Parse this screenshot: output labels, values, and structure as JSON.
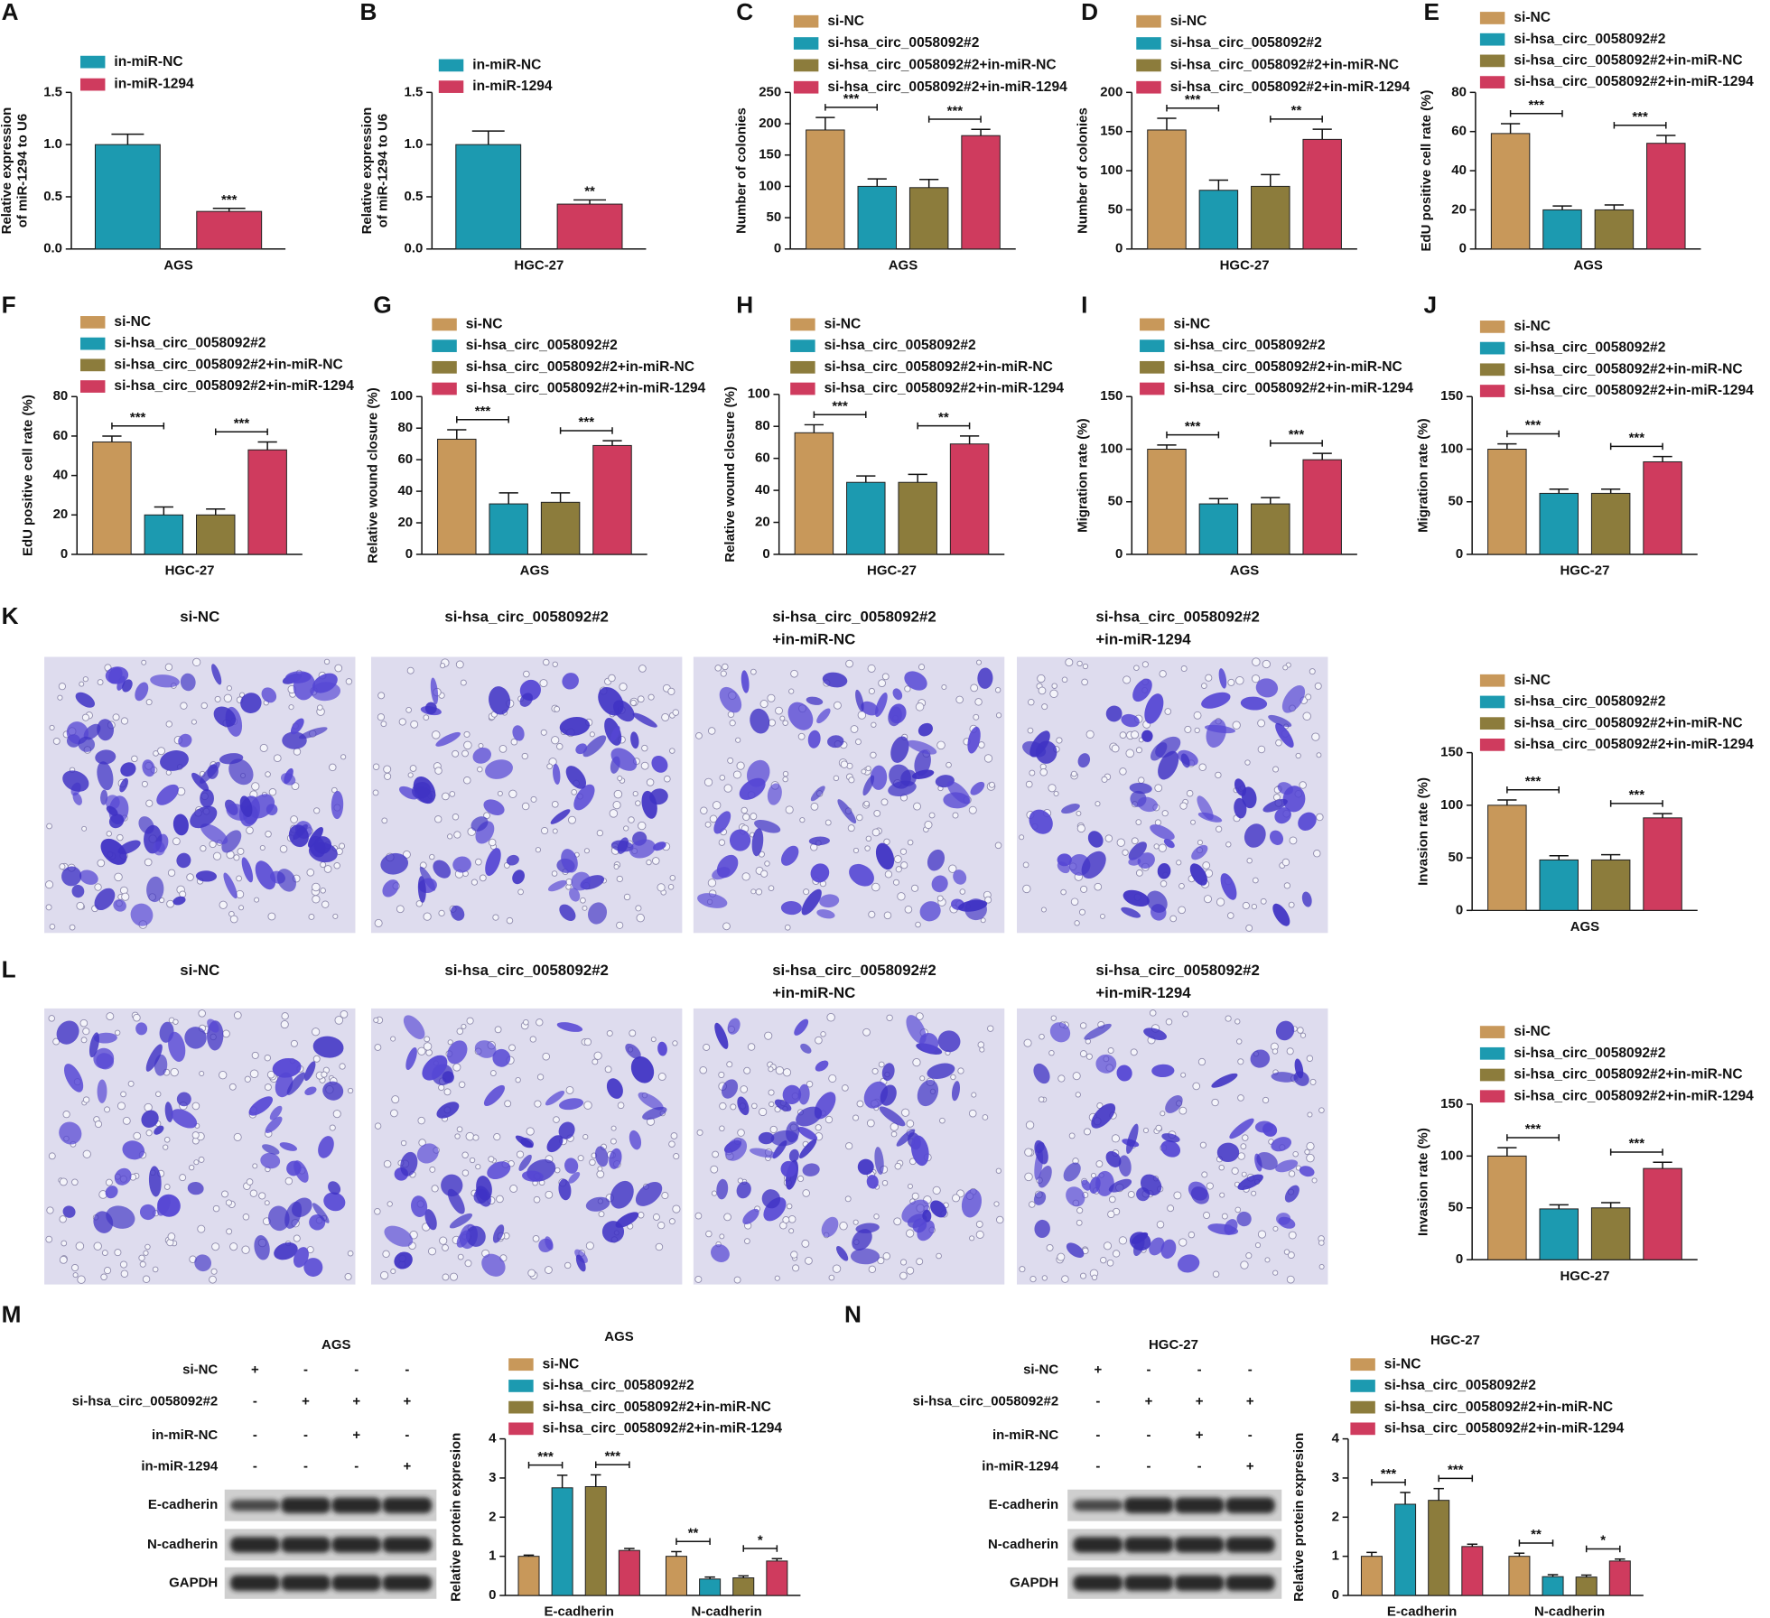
{
  "chart_data": [
    {
      "type": "bar",
      "label": "A",
      "ylabel": [
        "Relative expression",
        "of miR-1294 to U6"
      ],
      "categories": [
        "AGS"
      ],
      "series": [
        {
          "name": "in-miR-NC",
          "color": "#1c9ab0",
          "values": [
            1.0
          ],
          "errors": [
            0.1
          ]
        },
        {
          "name": "in-miR-1294",
          "color": "#cf3b5e",
          "values": [
            0.36
          ],
          "errors": [
            0.03
          ]
        }
      ],
      "significance": [
        [
          "***"
        ]
      ],
      "ylim": [
        0,
        1.5
      ],
      "yticks": [
        {
          "value": 0,
          "label": "0.0"
        },
        {
          "value": 0.5,
          "label": "0.5"
        },
        {
          "value": 1,
          "label": "1.0"
        },
        {
          "value": 1.5,
          "label": "1.5"
        }
      ]
    },
    {
      "type": "bar",
      "label": "B",
      "ylabel": [
        "Relative expression",
        "of miR-1294 to U6"
      ],
      "categories": [
        "HGC-27"
      ],
      "series": [
        {
          "name": "in-miR-NC",
          "color": "#1c9ab0",
          "values": [
            1.0
          ],
          "errors": [
            0.13
          ]
        },
        {
          "name": "in-miR-1294",
          "color": "#cf3b5e",
          "values": [
            0.43
          ],
          "errors": [
            0.04
          ]
        }
      ],
      "significance": [
        [
          "**"
        ]
      ],
      "ylim": [
        0,
        1.5
      ],
      "yticks": [
        {
          "value": 0,
          "label": "0.0"
        },
        {
          "value": 0.5,
          "label": "0.5"
        },
        {
          "value": 1,
          "label": "1.0"
        },
        {
          "value": 1.5,
          "label": "1.5"
        }
      ]
    },
    {
      "type": "bar",
      "label": "C",
      "ylabel": [
        "Number of colonies"
      ],
      "categories": [
        "AGS"
      ],
      "series": [
        {
          "name": "si-NC",
          "color": "#c8985a",
          "values": [
            190
          ],
          "errors": [
            20
          ]
        },
        {
          "name": "si-hsa_circ_0058092#2",
          "color": "#1c9ab0",
          "values": [
            100
          ],
          "errors": [
            12
          ]
        },
        {
          "name": "si-hsa_circ_0058092#2+in-miR-NC",
          "color": "#8c7c3c",
          "values": [
            98
          ],
          "errors": [
            13
          ]
        },
        {
          "name": "si-hsa_circ_0058092#2+in-miR-1294",
          "color": "#cf3b5e",
          "values": [
            181
          ],
          "errors": [
            10
          ]
        }
      ],
      "significance": [
        [
          "***",
          "***"
        ]
      ],
      "ylim": [
        0,
        250
      ],
      "yticks": [
        0,
        50,
        100,
        150,
        200,
        250
      ]
    },
    {
      "type": "bar",
      "label": "D",
      "ylabel": [
        "Number of colonies"
      ],
      "categories": [
        "HGC-27"
      ],
      "series": [
        {
          "name": "si-NC",
          "color": "#c8985a",
          "values": [
            152
          ],
          "errors": [
            15
          ]
        },
        {
          "name": "si-hsa_circ_0058092#2",
          "color": "#1c9ab0",
          "values": [
            75
          ],
          "errors": [
            13
          ]
        },
        {
          "name": "si-hsa_circ_0058092#2+in-miR-NC",
          "color": "#8c7c3c",
          "values": [
            80
          ],
          "errors": [
            15
          ]
        },
        {
          "name": "si-hsa_circ_0058092#2+in-miR-1294",
          "color": "#cf3b5e",
          "values": [
            140
          ],
          "errors": [
            13
          ]
        }
      ],
      "significance": [
        [
          "***",
          "**"
        ]
      ],
      "ylim": [
        0,
        200
      ],
      "yticks": [
        0,
        50,
        100,
        150,
        200
      ]
    },
    {
      "type": "bar",
      "label": "E",
      "ylabel": [
        "EdU positive cell rate (%)"
      ],
      "categories": [
        "AGS"
      ],
      "series": [
        {
          "name": "si-NC",
          "color": "#c8985a",
          "values": [
            59
          ],
          "errors": [
            5
          ]
        },
        {
          "name": "si-hsa_circ_0058092#2",
          "color": "#1c9ab0",
          "values": [
            20
          ],
          "errors": [
            2
          ]
        },
        {
          "name": "si-hsa_circ_0058092#2+in-miR-NC",
          "color": "#8c7c3c",
          "values": [
            20
          ],
          "errors": [
            2.5
          ]
        },
        {
          "name": "si-hsa_circ_0058092#2+in-miR-1294",
          "color": "#cf3b5e",
          "values": [
            54
          ],
          "errors": [
            4
          ]
        }
      ],
      "significance": [
        [
          "***",
          "***"
        ]
      ],
      "ylim": [
        0,
        80
      ],
      "yticks": [
        0,
        20,
        40,
        60,
        80
      ]
    },
    {
      "type": "bar",
      "label": "F",
      "ylabel": [
        "EdU positive cell rate (%)"
      ],
      "categories": [
        "HGC-27"
      ],
      "series": [
        {
          "name": "si-NC",
          "color": "#c8985a",
          "values": [
            57
          ],
          "errors": [
            3
          ]
        },
        {
          "name": "si-hsa_circ_0058092#2",
          "color": "#1c9ab0",
          "values": [
            20
          ],
          "errors": [
            4
          ]
        },
        {
          "name": "si-hsa_circ_0058092#2+in-miR-NC",
          "color": "#8c7c3c",
          "values": [
            20
          ],
          "errors": [
            3
          ]
        },
        {
          "name": "si-hsa_circ_0058092#2+in-miR-1294",
          "color": "#cf3b5e",
          "values": [
            53
          ],
          "errors": [
            4
          ]
        }
      ],
      "significance": [
        [
          "***",
          "***"
        ]
      ],
      "ylim": [
        0,
        80
      ],
      "yticks": [
        0,
        20,
        40,
        60,
        80
      ]
    },
    {
      "type": "bar",
      "label": "G",
      "ylabel": [
        "Relative wound closure (%)"
      ],
      "categories": [
        "AGS"
      ],
      "series": [
        {
          "name": "si-NC",
          "color": "#c8985a",
          "values": [
            73
          ],
          "errors": [
            6
          ]
        },
        {
          "name": "si-hsa_circ_0058092#2",
          "color": "#1c9ab0",
          "values": [
            32
          ],
          "errors": [
            7
          ]
        },
        {
          "name": "si-hsa_circ_0058092#2+in-miR-NC",
          "color": "#8c7c3c",
          "values": [
            33
          ],
          "errors": [
            6
          ]
        },
        {
          "name": "si-hsa_circ_0058092#2+in-miR-1294",
          "color": "#cf3b5e",
          "values": [
            69
          ],
          "errors": [
            3
          ]
        }
      ],
      "significance": [
        [
          "***",
          "***"
        ]
      ],
      "ylim": [
        0,
        100
      ],
      "yticks": [
        0,
        20,
        40,
        60,
        80,
        100
      ]
    },
    {
      "type": "bar",
      "label": "H",
      "ylabel": [
        "Relative wound closure (%)"
      ],
      "categories": [
        "HGC-27"
      ],
      "series": [
        {
          "name": "si-NC",
          "color": "#c8985a",
          "values": [
            76
          ],
          "errors": [
            5
          ]
        },
        {
          "name": "si-hsa_circ_0058092#2",
          "color": "#1c9ab0",
          "values": [
            45
          ],
          "errors": [
            4
          ]
        },
        {
          "name": "si-hsa_circ_0058092#2+in-miR-NC",
          "color": "#8c7c3c",
          "values": [
            45
          ],
          "errors": [
            5
          ]
        },
        {
          "name": "si-hsa_circ_0058092#2+in-miR-1294",
          "color": "#cf3b5e",
          "values": [
            69
          ],
          "errors": [
            5
          ]
        }
      ],
      "significance": [
        [
          "***",
          "**"
        ]
      ],
      "ylim": [
        0,
        100
      ],
      "yticks": [
        0,
        20,
        40,
        60,
        80,
        100
      ]
    },
    {
      "type": "bar",
      "label": "I",
      "ylabel": [
        "Migration rate (%)"
      ],
      "categories": [
        "AGS"
      ],
      "series": [
        {
          "name": "si-NC",
          "color": "#c8985a",
          "values": [
            100
          ],
          "errors": [
            4
          ]
        },
        {
          "name": "si-hsa_circ_0058092#2",
          "color": "#1c9ab0",
          "values": [
            48
          ],
          "errors": [
            5
          ]
        },
        {
          "name": "si-hsa_circ_0058092#2+in-miR-NC",
          "color": "#8c7c3c",
          "values": [
            48
          ],
          "errors": [
            6
          ]
        },
        {
          "name": "si-hsa_circ_0058092#2+in-miR-1294",
          "color": "#cf3b5e",
          "values": [
            90
          ],
          "errors": [
            6
          ]
        }
      ],
      "significance": [
        [
          "***",
          "***"
        ]
      ],
      "ylim": [
        0,
        150
      ],
      "yticks": [
        0,
        50,
        100,
        150
      ]
    },
    {
      "type": "bar",
      "label": "J",
      "ylabel": [
        "Migration rate (%)"
      ],
      "categories": [
        "HGC-27"
      ],
      "series": [
        {
          "name": "si-NC",
          "color": "#c8985a",
          "values": [
            100
          ],
          "errors": [
            5
          ]
        },
        {
          "name": "si-hsa_circ_0058092#2",
          "color": "#1c9ab0",
          "values": [
            58
          ],
          "errors": [
            4
          ]
        },
        {
          "name": "si-hsa_circ_0058092#2+in-miR-NC",
          "color": "#8c7c3c",
          "values": [
            58
          ],
          "errors": [
            4
          ]
        },
        {
          "name": "si-hsa_circ_0058092#2+in-miR-1294",
          "color": "#cf3b5e",
          "values": [
            88
          ],
          "errors": [
            5
          ]
        }
      ],
      "significance": [
        [
          "***",
          "***"
        ]
      ],
      "ylim": [
        0,
        150
      ],
      "yticks": [
        0,
        50,
        100,
        150
      ]
    },
    {
      "type": "bar",
      "ylabel": [
        "Invasion rate (%)"
      ],
      "categories": [
        "AGS"
      ],
      "series": [
        {
          "name": "si-NC",
          "color": "#c8985a",
          "values": [
            100
          ],
          "errors": [
            5
          ]
        },
        {
          "name": "si-hsa_circ_0058092#2",
          "color": "#1c9ab0",
          "values": [
            48
          ],
          "errors": [
            4
          ]
        },
        {
          "name": "si-hsa_circ_0058092#2+in-miR-NC",
          "color": "#8c7c3c",
          "values": [
            48
          ],
          "errors": [
            5
          ]
        },
        {
          "name": "si-hsa_circ_0058092#2+in-miR-1294",
          "color": "#cf3b5e",
          "values": [
            88
          ],
          "errors": [
            4
          ]
        }
      ],
      "significance": [
        [
          "***",
          "***"
        ]
      ],
      "ylim": [
        0,
        150
      ],
      "yticks": [
        0,
        50,
        100,
        150
      ]
    },
    {
      "type": "bar",
      "ylabel": [
        "Invasion rate (%)"
      ],
      "categories": [
        "HGC-27"
      ],
      "series": [
        {
          "name": "si-NC",
          "color": "#c8985a",
          "values": [
            100
          ],
          "errors": [
            8
          ]
        },
        {
          "name": "si-hsa_circ_0058092#2",
          "color": "#1c9ab0",
          "values": [
            49
          ],
          "errors": [
            4
          ]
        },
        {
          "name": "si-hsa_circ_0058092#2+in-miR-NC",
          "color": "#8c7c3c",
          "values": [
            50
          ],
          "errors": [
            5
          ]
        },
        {
          "name": "si-hsa_circ_0058092#2+in-miR-1294",
          "color": "#cf3b5e",
          "values": [
            88
          ],
          "errors": [
            6
          ]
        }
      ],
      "significance": [
        [
          "***",
          "***"
        ]
      ],
      "ylim": [
        0,
        150
      ],
      "yticks": [
        0,
        50,
        100,
        150
      ]
    },
    {
      "type": "bar",
      "title": "AGS",
      "ylabel": [
        "Relative protein expresion"
      ],
      "categories": [
        "E-cadherin",
        "N-cadherin"
      ],
      "series": [
        {
          "name": "si-NC",
          "color": "#c8985a",
          "values": [
            1.0,
            1.0
          ],
          "errors": [
            0.03,
            0.12
          ]
        },
        {
          "name": "si-hsa_circ_0058092#2",
          "color": "#1c9ab0",
          "values": [
            2.75,
            0.42
          ],
          "errors": [
            0.32,
            0.05
          ]
        },
        {
          "name": "si-hsa_circ_0058092#2+in-miR-NC",
          "color": "#8c7c3c",
          "values": [
            2.78,
            0.45
          ],
          "errors": [
            0.3,
            0.05
          ]
        },
        {
          "name": "si-hsa_circ_0058092#2+in-miR-1294",
          "color": "#cf3b5e",
          "values": [
            1.15,
            0.88
          ],
          "errors": [
            0.05,
            0.06
          ]
        }
      ],
      "significance": [
        [
          "***",
          "***"
        ],
        [
          "**",
          "*"
        ]
      ],
      "ylim": [
        0,
        4
      ],
      "yticks": [
        0,
        1,
        2,
        3,
        4
      ]
    },
    {
      "type": "bar",
      "title": "HGC-27",
      "ylabel": [
        "Relative protein expresion"
      ],
      "categories": [
        "E-cadherin",
        "N-cadherin"
      ],
      "series": [
        {
          "name": "si-NC",
          "color": "#c8985a",
          "values": [
            1.0,
            1.0
          ],
          "errors": [
            0.1,
            0.08
          ]
        },
        {
          "name": "si-hsa_circ_0058092#2",
          "color": "#1c9ab0",
          "values": [
            2.33,
            0.48
          ],
          "errors": [
            0.3,
            0.05
          ]
        },
        {
          "name": "si-hsa_circ_0058092#2+in-miR-NC",
          "color": "#8c7c3c",
          "values": [
            2.43,
            0.47
          ],
          "errors": [
            0.3,
            0.05
          ]
        },
        {
          "name": "si-hsa_circ_0058092#2+in-miR-1294",
          "color": "#cf3b5e",
          "values": [
            1.25,
            0.88
          ],
          "errors": [
            0.06,
            0.05
          ]
        }
      ],
      "significance": [
        [
          "***",
          "***"
        ],
        [
          "**",
          "*"
        ]
      ],
      "ylim": [
        0,
        4
      ],
      "yticks": [
        0,
        1,
        2,
        3,
        4
      ]
    }
  ],
  "micrographs": [
    {
      "label": "K",
      "captions": [
        [
          "si-NC"
        ],
        [
          "si-hsa_circ_0058092#2"
        ],
        [
          "si-hsa_circ_0058092#2",
          "+in-miR-NC"
        ],
        [
          "si-hsa_circ_0058092#2",
          "+in-miR-1294"
        ]
      ]
    },
    {
      "label": "L",
      "captions": [
        [
          "si-NC"
        ],
        [
          "si-hsa_circ_0058092#2"
        ],
        [
          "si-hsa_circ_0058092#2",
          "+in-miR-NC"
        ],
        [
          "si-hsa_circ_0058092#2",
          "+in-miR-1294"
        ]
      ]
    }
  ],
  "blots": [
    {
      "label": "M",
      "title": "AGS",
      "conditions": [
        "si-NC",
        "si-hsa_circ_0058092#2",
        "in-miR-NC",
        "in-miR-1294"
      ],
      "signs": [
        [
          "+",
          "-",
          "-",
          "-"
        ],
        [
          "-",
          "+",
          "+",
          "+"
        ],
        [
          "-",
          "-",
          "+",
          "-"
        ],
        [
          "-",
          "-",
          "-",
          "+"
        ]
      ],
      "bands": [
        "E-cadherin",
        "N-cadherin",
        "GAPDH"
      ]
    },
    {
      "label": "N",
      "title": "HGC-27",
      "conditions": [
        "si-NC",
        "si-hsa_circ_0058092#2",
        "in-miR-NC",
        "in-miR-1294"
      ],
      "signs": [
        [
          "+",
          "-",
          "-",
          "-"
        ],
        [
          "-",
          "+",
          "+",
          "+"
        ],
        [
          "-",
          "-",
          "+",
          "-"
        ],
        [
          "-",
          "-",
          "-",
          "+"
        ]
      ],
      "bands": [
        "E-cadherin",
        "N-cadherin",
        "GAPDH"
      ]
    }
  ]
}
